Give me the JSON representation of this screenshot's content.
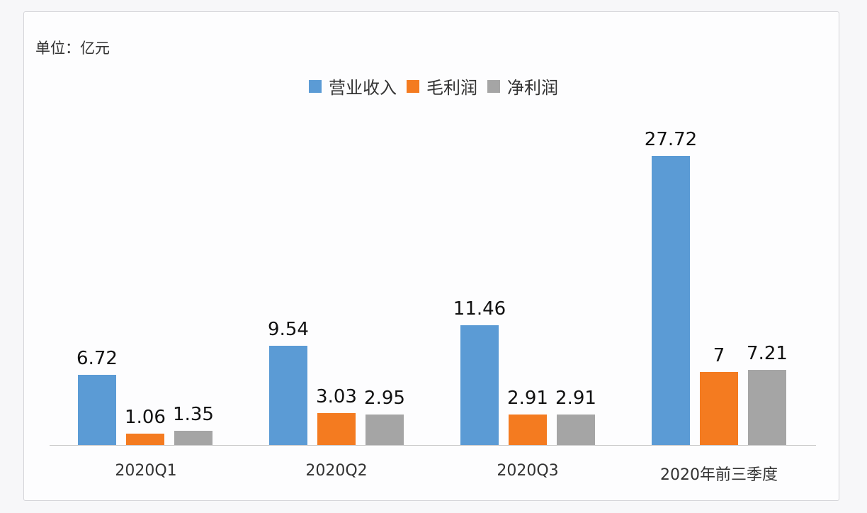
{
  "unit_label": "单位：亿元",
  "legend": [
    {
      "label": "营业收入",
      "color": "#5b9bd5"
    },
    {
      "label": "毛利润",
      "color": "#f47b20"
    },
    {
      "label": "净利润",
      "color": "#a5a5a5"
    }
  ],
  "chart_data": {
    "type": "bar",
    "title": "",
    "xlabel": "",
    "ylabel": "",
    "unit": "亿元",
    "categories": [
      "2020Q1",
      "2020Q2",
      "2020Q3",
      "2020年前三季度"
    ],
    "series": [
      {
        "name": "营业收入",
        "color": "#5b9bd5",
        "values": [
          6.72,
          9.54,
          11.46,
          27.72
        ]
      },
      {
        "name": "毛利润",
        "color": "#f47b20",
        "values": [
          1.06,
          3.03,
          2.91,
          7
        ]
      },
      {
        "name": "净利润",
        "color": "#a5a5a5",
        "values": [
          1.35,
          2.95,
          2.91,
          7.21
        ]
      }
    ],
    "data_labels": true,
    "grid": false,
    "legend_position": "top",
    "ylim": [
      0,
      30
    ]
  },
  "labels": {
    "g0": {
      "cat": "2020Q1",
      "s0": "6.72",
      "s1": "1.06",
      "s2": "1.35"
    },
    "g1": {
      "cat": "2020Q2",
      "s0": "9.54",
      "s1": "3.03",
      "s2": "2.95"
    },
    "g2": {
      "cat": "2020Q3",
      "s0": "11.46",
      "s1": "2.91",
      "s2": "2.91"
    },
    "g3": {
      "cat": "2020年前三季度",
      "s0": "27.72",
      "s1": "7",
      "s2": "7.21"
    }
  },
  "legend_labels": {
    "s0": "营业收入",
    "s1": "毛利润",
    "s2": "净利润"
  }
}
